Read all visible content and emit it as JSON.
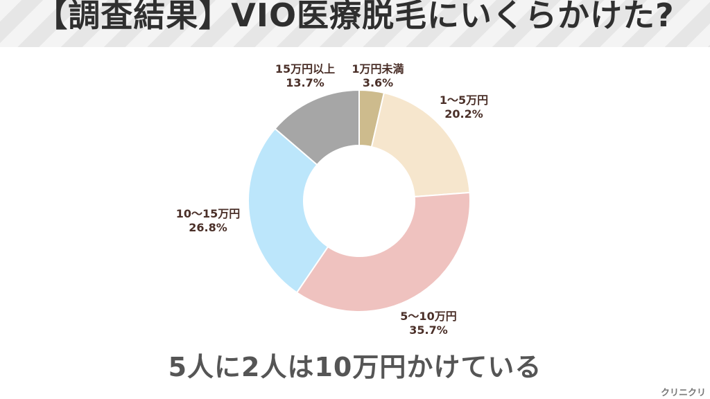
{
  "header": {
    "title": "【調査結果】VIO医療脱毛にいくらかけた?"
  },
  "chart_data": {
    "type": "pie",
    "donut": true,
    "start": "top",
    "direction": "clockwise",
    "slices": [
      {
        "label": "1万円未満",
        "value": 3.6,
        "value_label": "3.6%",
        "color": "#cdbb8d"
      },
      {
        "label": "1～5万円",
        "value": 20.2,
        "value_label": "20.2%",
        "color": "#f6e6cd"
      },
      {
        "label": "5～10万円",
        "value": 35.7,
        "value_label": "35.7%",
        "color": "#efc2bf"
      },
      {
        "label": "10～15万円",
        "value": 26.8,
        "value_label": "26.8%",
        "color": "#bce6fb"
      },
      {
        "label": "15万円以上",
        "value": 13.7,
        "value_label": "13.7%",
        "color": "#a6a6a6"
      }
    ]
  },
  "summary": {
    "text": "5人に2人は10万円かけている"
  },
  "footer": {
    "watermark": "クリニクリ"
  }
}
